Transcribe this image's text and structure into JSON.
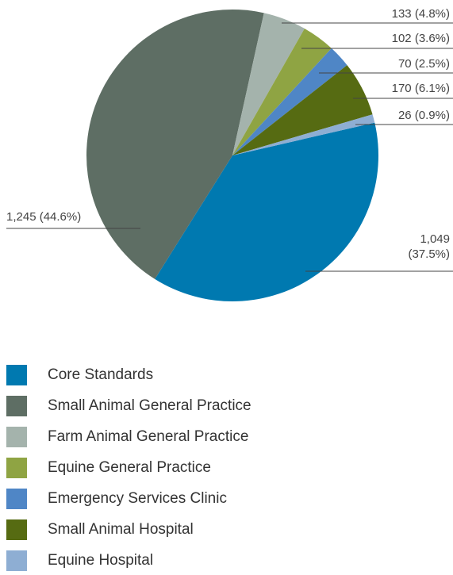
{
  "chart_data": {
    "type": "pie",
    "categories": [
      "Core Standards",
      "Small Animal General Practice",
      "Farm Animal General Practice",
      "Equine General Practice",
      "Emergency Services Clinic",
      "Small Animal Hospital",
      "Equine Hospital"
    ],
    "values": [
      1049,
      1245,
      133,
      102,
      70,
      170,
      26
    ],
    "value_labels": [
      "1,049 (37.5%)",
      "1,245 (44.6%)",
      "133 (4.8%)",
      "102 (3.6%)",
      "70 (2.5%)",
      "170 (6.1%)",
      "26 (0.9%)"
    ],
    "colors": [
      "#0079b0",
      "#5e6e64",
      "#a4b3ac",
      "#8fa443",
      "#4f86c6",
      "#566b12",
      "#8eaed3"
    ]
  }
}
